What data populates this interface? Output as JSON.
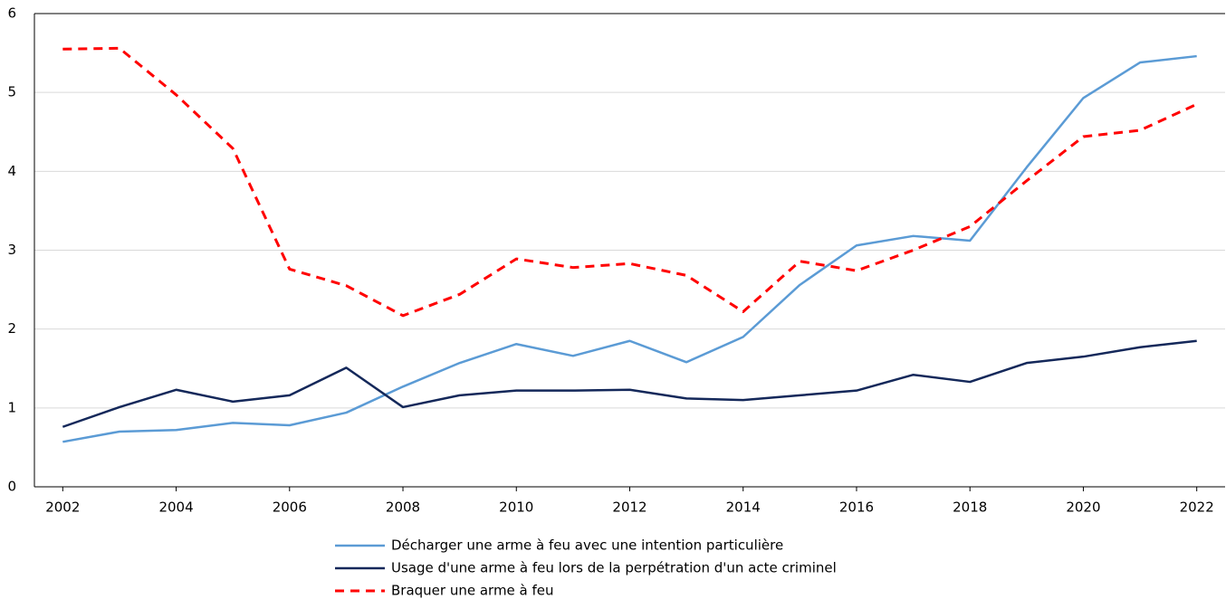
{
  "chart_data": {
    "type": "line",
    "x": [
      2002,
      2003,
      2004,
      2005,
      2006,
      2007,
      2008,
      2009,
      2010,
      2011,
      2012,
      2013,
      2014,
      2015,
      2016,
      2017,
      2018,
      2019,
      2020,
      2021,
      2022
    ],
    "series": [
      {
        "name": "Décharger une arme à feu avec une intention particulière",
        "color": "#5b9bd5",
        "dash": false,
        "values": [
          0.57,
          0.7,
          0.72,
          0.81,
          0.78,
          0.94,
          1.27,
          1.57,
          1.81,
          1.66,
          1.85,
          1.58,
          1.9,
          2.56,
          3.06,
          3.18,
          3.12,
          4.05,
          4.93,
          5.38,
          5.46
        ]
      },
      {
        "name": "Usage d'une arme à feu lors de la perpétration d'un acte criminel",
        "color": "#14285a",
        "dash": false,
        "values": [
          0.76,
          1.01,
          1.23,
          1.08,
          1.16,
          1.51,
          1.01,
          1.16,
          1.22,
          1.22,
          1.23,
          1.12,
          1.1,
          1.16,
          1.22,
          1.42,
          1.33,
          1.57,
          1.65,
          1.77,
          1.85
        ]
      },
      {
        "name": "Braquer une arme à feu",
        "color": "#ff0000",
        "dash": true,
        "values": [
          5.55,
          5.56,
          4.97,
          4.29,
          2.76,
          2.55,
          2.17,
          2.44,
          2.89,
          2.78,
          2.83,
          2.68,
          2.22,
          2.86,
          2.74,
          3.0,
          3.3,
          3.88,
          4.44,
          4.52,
          4.85
        ]
      }
    ],
    "xlim": [
      2001.5,
      2022.5
    ],
    "xticks": [
      2002,
      2004,
      2006,
      2008,
      2010,
      2012,
      2014,
      2016,
      2018,
      2020,
      2022
    ],
    "ylim": [
      0,
      6
    ],
    "yticks": [
      0,
      1,
      2,
      3,
      4,
      5,
      6
    ],
    "grid": true,
    "legend": "bottom"
  }
}
